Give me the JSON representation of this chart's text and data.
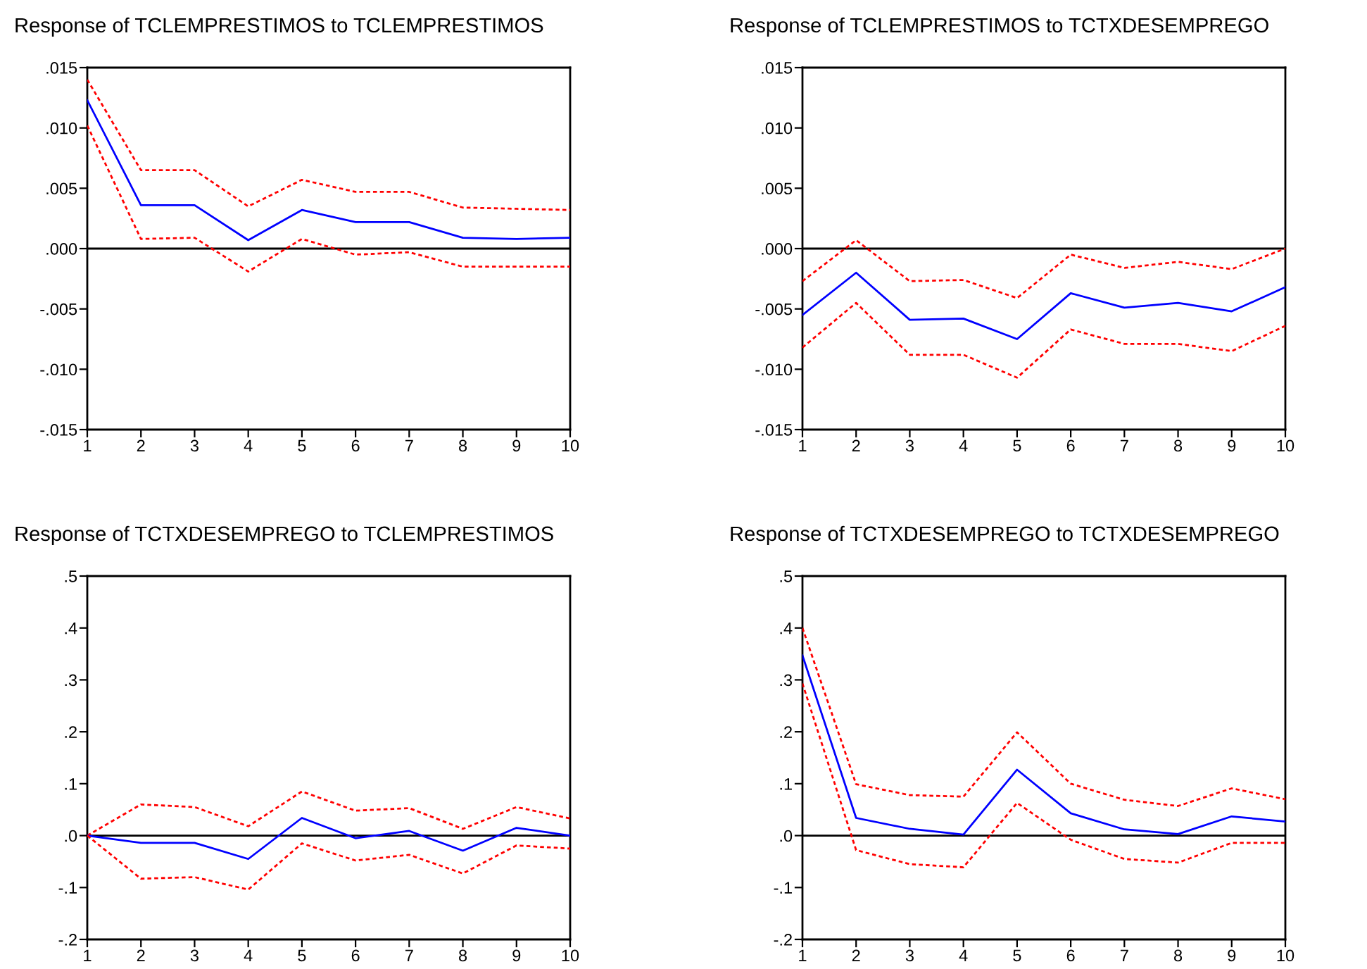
{
  "chart_data": [
    {
      "type": "line",
      "title": "Response of TCLEMPRESTIMOS to TCLEMPRESTIMOS",
      "x": [
        1,
        2,
        3,
        4,
        5,
        6,
        7,
        8,
        9,
        10
      ],
      "xlim": [
        1,
        10
      ],
      "xticks": [
        1,
        2,
        3,
        4,
        5,
        6,
        7,
        8,
        9,
        10
      ],
      "ylim": [
        -0.015,
        0.015
      ],
      "yticks": [
        {
          "value": -0.015,
          "label": "-.015"
        },
        {
          "value": -0.01,
          "label": "-.010"
        },
        {
          "value": -0.005,
          "label": "-.005"
        },
        {
          "value": 0,
          "label": ".000"
        },
        {
          "value": 0.005,
          "label": ".005"
        },
        {
          "value": 0.01,
          "label": ".010"
        },
        {
          "value": 0.015,
          "label": ".015"
        }
      ],
      "grid": false,
      "ref_lines": [
        {
          "axis": "y",
          "value": 0,
          "color": "#000000"
        }
      ],
      "series": [
        {
          "color": "#ff0000",
          "line_style": "dashed",
          "values": [
            0.014,
            0.0065,
            0.0065,
            0.0035,
            0.0057,
            0.0047,
            0.0047,
            0.0034,
            0.0033,
            0.0032
          ]
        },
        {
          "color": "#0000ff",
          "line_style": "solid",
          "values": [
            0.0123,
            0.0036,
            0.0036,
            0.0007,
            0.0032,
            0.0022,
            0.0022,
            0.0009,
            0.0008,
            0.0009
          ]
        },
        {
          "color": "#ff0000",
          "line_style": "dashed",
          "values": [
            0.0102,
            0.0008,
            0.0009,
            -0.0019,
            0.0008,
            -0.0005,
            -0.0003,
            -0.0015,
            -0.0015,
            -0.0015
          ]
        }
      ]
    },
    {
      "type": "line",
      "title": "Response of TCLEMPRESTIMOS to TCTXDESEMPREGO",
      "x": [
        1,
        2,
        3,
        4,
        5,
        6,
        7,
        8,
        9,
        10
      ],
      "xlim": [
        1,
        10
      ],
      "xticks": [
        1,
        2,
        3,
        4,
        5,
        6,
        7,
        8,
        9,
        10
      ],
      "ylim": [
        -0.015,
        0.015
      ],
      "yticks": [
        {
          "value": -0.015,
          "label": "-.015"
        },
        {
          "value": -0.01,
          "label": "-.010"
        },
        {
          "value": -0.005,
          "label": "-.005"
        },
        {
          "value": 0,
          "label": ".000"
        },
        {
          "value": 0.005,
          "label": ".005"
        },
        {
          "value": 0.01,
          "label": ".010"
        },
        {
          "value": 0.015,
          "label": ".015"
        }
      ],
      "grid": false,
      "ref_lines": [
        {
          "axis": "y",
          "value": 0,
          "color": "#000000"
        }
      ],
      "series": [
        {
          "color": "#ff0000",
          "line_style": "dashed",
          "values": [
            -0.0027,
            0.0007,
            -0.0027,
            -0.0026,
            -0.0041,
            -0.0005,
            -0.0016,
            -0.0011,
            -0.0017,
            0.0
          ]
        },
        {
          "color": "#0000ff",
          "line_style": "solid",
          "values": [
            -0.0055,
            -0.002,
            -0.0059,
            -0.0058,
            -0.0075,
            -0.0037,
            -0.0049,
            -0.0045,
            -0.0052,
            -0.0032
          ]
        },
        {
          "color": "#ff0000",
          "line_style": "dashed",
          "values": [
            -0.0082,
            -0.0045,
            -0.0088,
            -0.0088,
            -0.0107,
            -0.0067,
            -0.0079,
            -0.0079,
            -0.0085,
            -0.0064
          ]
        }
      ]
    },
    {
      "type": "line",
      "title": "Response of TCTXDESEMPREGO to TCLEMPRESTIMOS",
      "x": [
        1,
        2,
        3,
        4,
        5,
        6,
        7,
        8,
        9,
        10
      ],
      "xlim": [
        1,
        10
      ],
      "xticks": [
        1,
        2,
        3,
        4,
        5,
        6,
        7,
        8,
        9,
        10
      ],
      "ylim": [
        -0.2,
        0.5
      ],
      "yticks": [
        {
          "value": -0.2,
          "label": "-.2"
        },
        {
          "value": -0.1,
          "label": "-.1"
        },
        {
          "value": 0,
          "label": ".0"
        },
        {
          "value": 0.1,
          "label": ".1"
        },
        {
          "value": 0.2,
          "label": ".2"
        },
        {
          "value": 0.3,
          "label": ".3"
        },
        {
          "value": 0.4,
          "label": ".4"
        },
        {
          "value": 0.5,
          "label": ".5"
        }
      ],
      "grid": false,
      "ref_lines": [
        {
          "axis": "y",
          "value": 0,
          "color": "#000000"
        }
      ],
      "series": [
        {
          "color": "#ff0000",
          "line_style": "dashed",
          "values": [
            0.0,
            0.06,
            0.055,
            0.018,
            0.085,
            0.048,
            0.053,
            0.013,
            0.055,
            0.033
          ]
        },
        {
          "color": "#0000ff",
          "line_style": "solid",
          "values": [
            0.0,
            -0.014,
            -0.014,
            -0.045,
            0.034,
            -0.005,
            0.009,
            -0.029,
            0.015,
            0.0
          ]
        },
        {
          "color": "#ff0000",
          "line_style": "dashed",
          "values": [
            0.0,
            -0.083,
            -0.08,
            -0.104,
            -0.015,
            -0.048,
            -0.037,
            -0.073,
            -0.019,
            -0.025
          ]
        }
      ]
    },
    {
      "type": "line",
      "title": "Response of TCTXDESEMPREGO to TCTXDESEMPREGO",
      "x": [
        1,
        2,
        3,
        4,
        5,
        6,
        7,
        8,
        9,
        10
      ],
      "xlim": [
        1,
        10
      ],
      "xticks": [
        1,
        2,
        3,
        4,
        5,
        6,
        7,
        8,
        9,
        10
      ],
      "ylim": [
        -0.2,
        0.5
      ],
      "yticks": [
        {
          "value": -0.2,
          "label": "-.2"
        },
        {
          "value": -0.1,
          "label": "-.1"
        },
        {
          "value": 0,
          "label": ".0"
        },
        {
          "value": 0.1,
          "label": ".1"
        },
        {
          "value": 0.2,
          "label": ".2"
        },
        {
          "value": 0.3,
          "label": ".3"
        },
        {
          "value": 0.4,
          "label": ".4"
        },
        {
          "value": 0.5,
          "label": ".5"
        }
      ],
      "grid": false,
      "ref_lines": [
        {
          "axis": "y",
          "value": 0,
          "color": "#000000"
        }
      ],
      "series": [
        {
          "color": "#ff0000",
          "line_style": "dashed",
          "values": [
            0.4,
            0.099,
            0.078,
            0.075,
            0.199,
            0.1,
            0.069,
            0.057,
            0.091,
            0.07
          ]
        },
        {
          "color": "#0000ff",
          "line_style": "solid",
          "values": [
            0.347,
            0.034,
            0.013,
            0.002,
            0.127,
            0.043,
            0.012,
            0.003,
            0.037,
            0.027
          ]
        },
        {
          "color": "#ff0000",
          "line_style": "dashed",
          "values": [
            0.293,
            -0.028,
            -0.055,
            -0.061,
            0.063,
            -0.008,
            -0.045,
            -0.052,
            -0.014,
            -0.014
          ]
        }
      ]
    }
  ]
}
